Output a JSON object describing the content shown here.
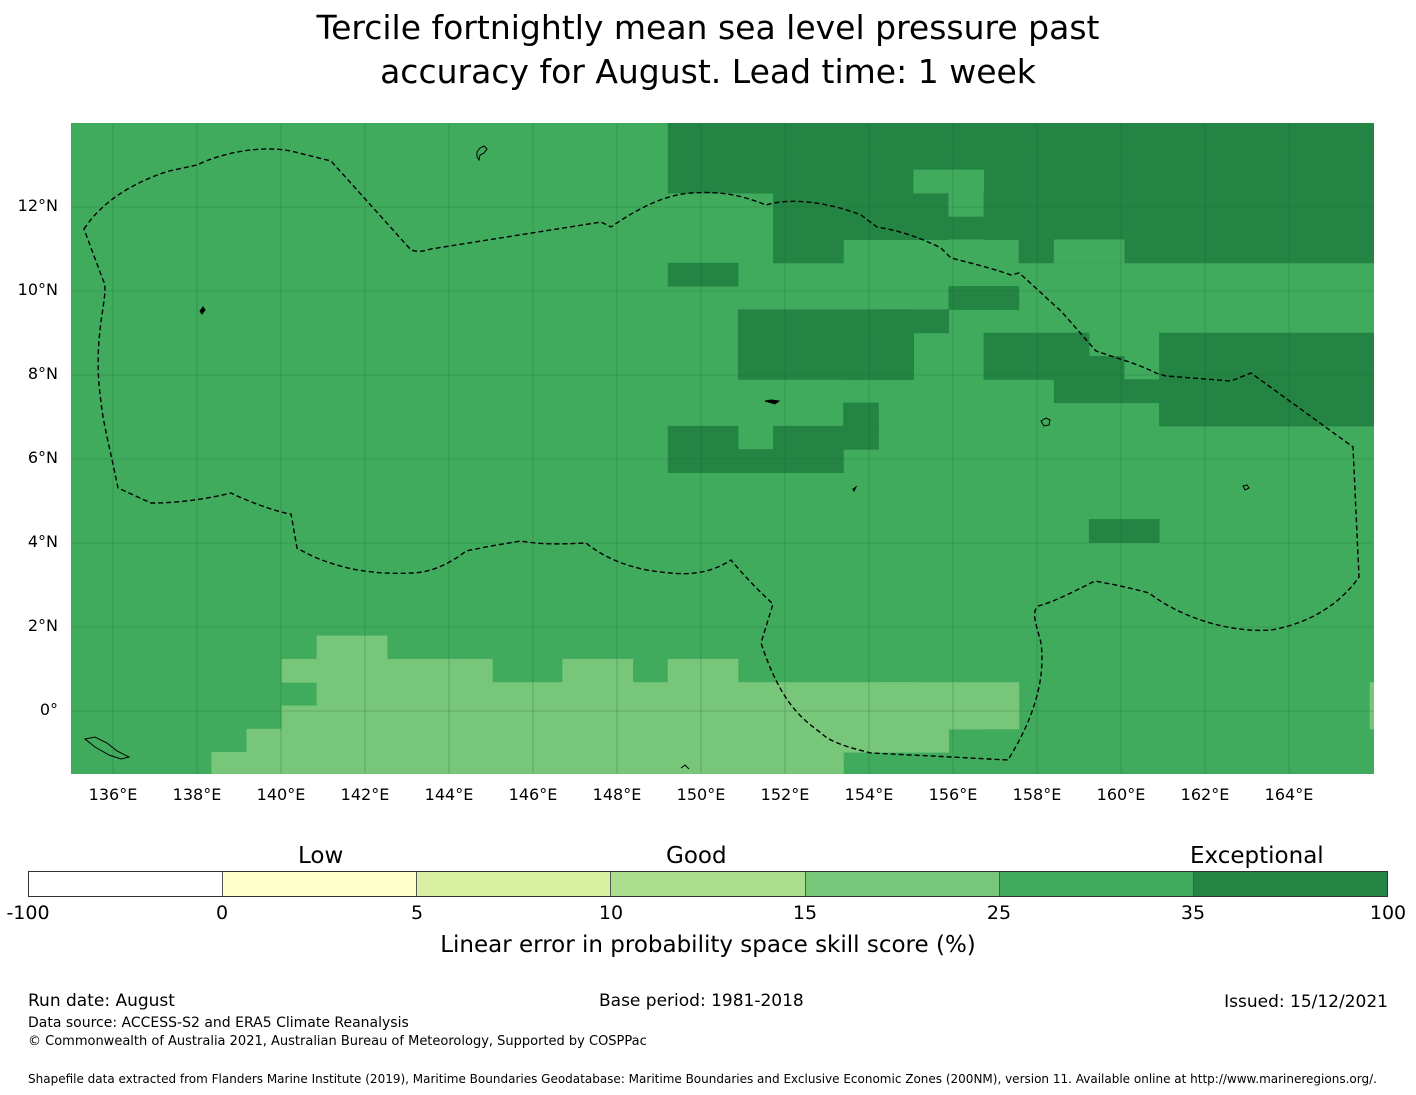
{
  "title": {
    "line1": "Tercile fortnightly mean sea level pressure past",
    "line2": "accuracy for August. Lead time: 1 week"
  },
  "map": {
    "lat_ticks": [
      "12°N",
      "10°N",
      "8°N",
      "6°N",
      "4°N",
      "2°N",
      "0°"
    ],
    "lon_ticks": [
      "136°E",
      "138°E",
      "140°E",
      "142°E",
      "144°E",
      "146°E",
      "148°E",
      "150°E",
      "152°E",
      "154°E",
      "156°E",
      "158°E",
      "160°E",
      "162°E",
      "164°E"
    ],
    "colors": {
      "class_15_25": "#78c679",
      "class_25_35": "#41ab5d",
      "class_35_100": "#238443",
      "grid": "#1f5f33",
      "eez_boundary": "#000000"
    },
    "grid_lines": "on",
    "region_boundary": "dashed line (Exclusive Economic Zone)"
  },
  "legend": {
    "categories": [
      "Low",
      "Good",
      "Exceptional"
    ],
    "ticks": [
      "-100",
      "0",
      "5",
      "10",
      "15",
      "25",
      "35",
      "100"
    ],
    "colors": [
      "#ffffff",
      "#ffffcc",
      "#d9f0a3",
      "#addd8e",
      "#78c679",
      "#41ab5d",
      "#238443"
    ],
    "label": "Linear error in probability space skill score (%)"
  },
  "footer": {
    "run_date": "Run date: August",
    "base_period": "Base period: 1981-2018",
    "issued": "Issued: 15/12/2021",
    "data_source": "Data source: ACCESS-S2 and ERA5 Climate Reanalysis",
    "copyright": "© Commonwealth of Australia 2021, Australian Bureau of Meteorology, Supported by COSPPac",
    "shapefile": "Shapefile data extracted from Flanders Marine Institute (2019), Maritime Boundaries Geodatabase: Maritime Boundaries and Exclusive Economic Zones (200NM), version 11. Available online at http://www.marineregions.org/."
  }
}
